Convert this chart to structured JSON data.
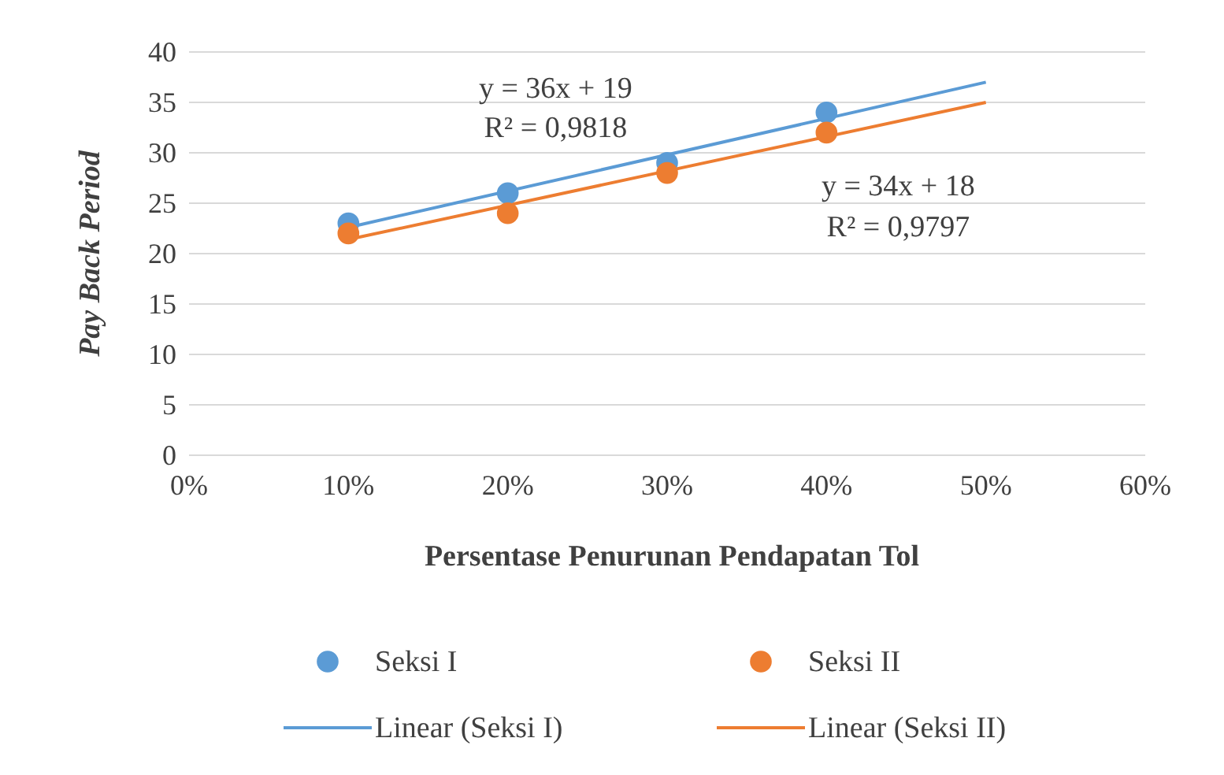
{
  "chart_data": {
    "type": "scatter",
    "xlabel": "Persentase Penurunan Pendapatan Tol",
    "ylabel": "Pay Back Period",
    "xlim": [
      0,
      0.6
    ],
    "xticks": [
      {
        "value": 0,
        "label": "0%"
      },
      {
        "value": 0.1,
        "label": "10%"
      },
      {
        "value": 0.2,
        "label": "20%"
      },
      {
        "value": 0.3,
        "label": "30%"
      },
      {
        "value": 0.4,
        "label": "40%"
      },
      {
        "value": 0.5,
        "label": "50%"
      },
      {
        "value": 0.6,
        "label": "60%"
      }
    ],
    "ylim": [
      0,
      40
    ],
    "yticks": [
      0,
      5,
      10,
      15,
      20,
      25,
      30,
      35,
      40
    ],
    "grid": "y",
    "legend": "bottom",
    "series": [
      {
        "name": "Seksi I",
        "marker": "circle",
        "color": "#5b9bd5",
        "x": [
          0.1,
          0.2,
          0.3,
          0.4
        ],
        "values": [
          23,
          26,
          29,
          34
        ]
      },
      {
        "name": "Seksi II",
        "marker": "circle",
        "color": "#ed7d31",
        "x": [
          0.1,
          0.2,
          0.3,
          0.4
        ],
        "values": [
          22,
          24,
          28,
          32
        ]
      },
      {
        "name": "Linear (Seksi I)",
        "type": "line",
        "marker": "none",
        "color": "#5b9bd5",
        "x": [
          0.1,
          0.5
        ],
        "values": [
          22.6,
          37
        ]
      },
      {
        "name": "Linear (Seksi II)",
        "type": "line",
        "marker": "none",
        "color": "#ed7d31",
        "x": [
          0.1,
          0.5
        ],
        "values": [
          21.4,
          35
        ]
      }
    ],
    "annotations": [
      "y = 36x + 19",
      "R² = 0,9818",
      "y = 34x + 18",
      "R² = 0,9797"
    ]
  }
}
